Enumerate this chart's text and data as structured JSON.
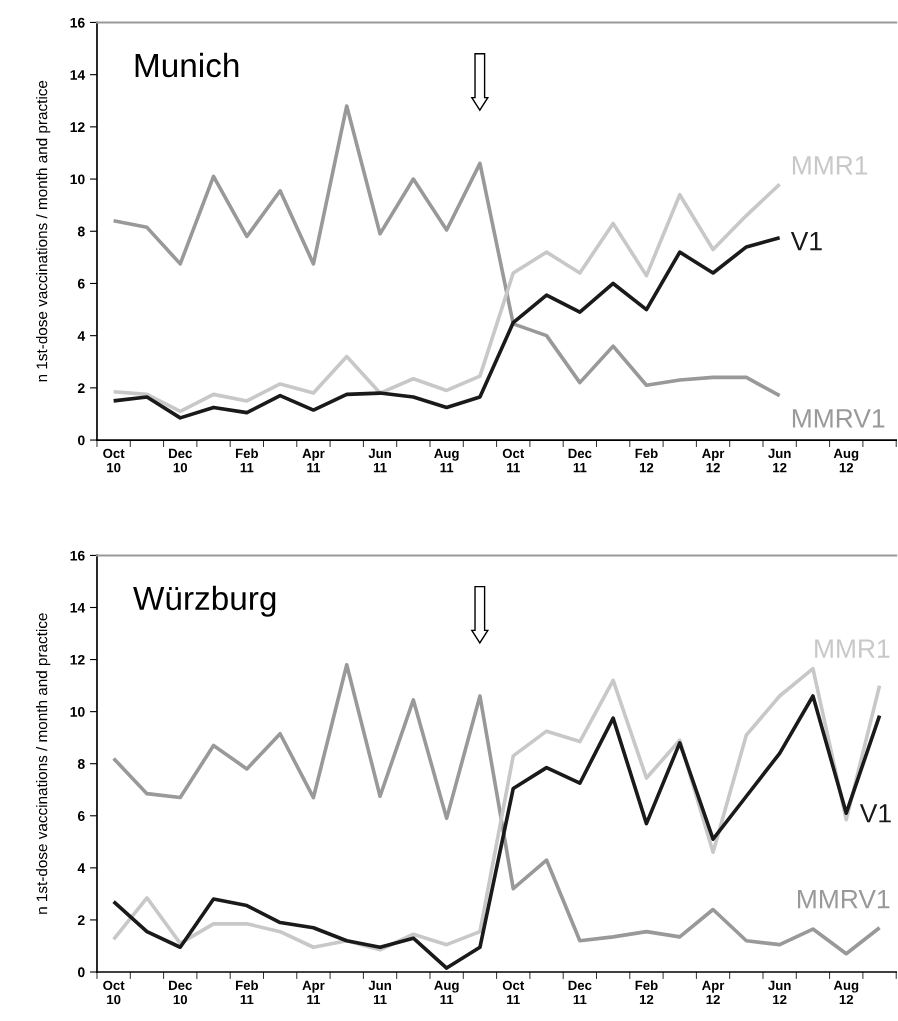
{
  "chart_data": [
    {
      "type": "line",
      "title": "Munich",
      "ylabel": "n 1st-dose vaccinations / month and practice",
      "categories": [
        "Oct\n10",
        null,
        "Dec\n10",
        null,
        "Feb\n11",
        null,
        "Apr\n11",
        null,
        "Jun\n11",
        null,
        "Aug\n11",
        null,
        "Oct\n11",
        null,
        "Dec\n11",
        null,
        "Feb\n12",
        null,
        "Apr\n12",
        null,
        "Jun\n12",
        null,
        "Aug\n12",
        null
      ],
      "ylim": [
        0,
        16
      ],
      "yticks": [
        0,
        2,
        4,
        6,
        8,
        10,
        12,
        14,
        16
      ],
      "grid": false,
      "legend": false,
      "marker": "none",
      "line_style": "solid",
      "series": [
        {
          "name": "MMRV1",
          "color": "#999999",
          "values": [
            8.4,
            8.15,
            6.75,
            10.1,
            7.8,
            9.55,
            6.75,
            12.8,
            7.9,
            10.0,
            8.05,
            10.6,
            4.45,
            4.0,
            2.2,
            3.6,
            2.1,
            2.3,
            2.4,
            2.4,
            1.7,
            null,
            null,
            null
          ]
        },
        {
          "name": "MMR1",
          "color": "#c8c8c8",
          "values": [
            1.85,
            1.75,
            1.1,
            1.75,
            1.5,
            2.15,
            1.8,
            3.2,
            1.8,
            2.35,
            1.9,
            2.45,
            6.4,
            7.2,
            6.4,
            8.3,
            6.3,
            9.4,
            7.3,
            8.6,
            9.8,
            null,
            null,
            null
          ]
        },
        {
          "name": "V1",
          "color": "#1a1a1a",
          "values": [
            1.5,
            1.65,
            0.85,
            1.25,
            1.05,
            1.7,
            1.15,
            1.75,
            1.8,
            1.65,
            1.25,
            1.65,
            4.5,
            5.55,
            4.9,
            6.0,
            5.0,
            7.2,
            6.4,
            7.4,
            7.75,
            null,
            null,
            null
          ]
        }
      ]
    },
    {
      "type": "line",
      "title": "Würzburg",
      "ylabel": "n 1st-dose vaccinations / month and practice",
      "categories": [
        "Oct\n10",
        null,
        "Dec\n10",
        null,
        "Feb\n11",
        null,
        "Apr\n11",
        null,
        "Jun\n11",
        null,
        "Aug\n11",
        null,
        "Oct\n11",
        null,
        "Dec\n11",
        null,
        "Feb\n12",
        null,
        "Apr\n12",
        null,
        "Jun\n12",
        null,
        "Aug\n12",
        null
      ],
      "ylim": [
        0,
        16
      ],
      "yticks": [
        0,
        2,
        4,
        6,
        8,
        10,
        12,
        14,
        16
      ],
      "grid": false,
      "legend": false,
      "marker": "none",
      "line_style": "solid",
      "series": [
        {
          "name": "MMRV1",
          "color": "#999999",
          "values": [
            8.2,
            6.85,
            6.7,
            8.7,
            7.8,
            9.15,
            6.7,
            11.8,
            6.75,
            10.45,
            5.9,
            10.6,
            3.2,
            4.3,
            1.2,
            1.35,
            1.55,
            1.35,
            2.4,
            1.2,
            1.05,
            1.65,
            0.7,
            1.7
          ]
        },
        {
          "name": "MMR1",
          "color": "#c8c8c8",
          "values": [
            1.25,
            2.85,
            1.1,
            1.85,
            1.85,
            1.55,
            0.95,
            1.2,
            0.85,
            1.45,
            1.05,
            1.55,
            8.3,
            9.25,
            8.85,
            11.2,
            7.45,
            8.9,
            4.6,
            9.1,
            10.6,
            11.65,
            5.85,
            11.0
          ]
        },
        {
          "name": "V1",
          "color": "#1a1a1a",
          "values": [
            2.7,
            1.55,
            0.95,
            2.8,
            2.55,
            1.9,
            1.7,
            1.2,
            0.95,
            1.3,
            0.15,
            0.95,
            7.05,
            7.85,
            7.25,
            9.75,
            5.7,
            8.8,
            5.1,
            6.75,
            8.4,
            10.6,
            6.1,
            9.85
          ]
        }
      ]
    }
  ]
}
